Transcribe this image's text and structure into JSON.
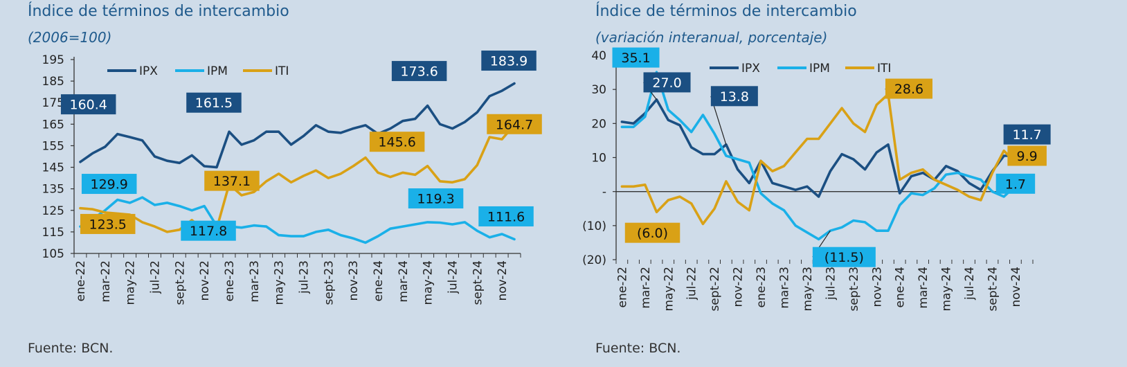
{
  "colors": {
    "IPX": "#1b4f82",
    "IPM": "#1ab0e8",
    "ITI": "#d9a116",
    "axis": "#333333"
  },
  "chart_data": [
    {
      "type": "line",
      "title": "Índice de términos de intercambio",
      "subtitle": "(2006=100)",
      "source": "Fuente: BCN.",
      "ylim": [
        105,
        195
      ],
      "yticks": [
        105,
        115,
        125,
        135,
        145,
        155,
        165,
        175,
        185,
        195
      ],
      "ytick_labels": [
        "105",
        "115",
        "125",
        "135",
        "145",
        "155",
        "165",
        "175",
        "185",
        "195"
      ],
      "x": [
        "ene-22",
        "feb-22",
        "mar-22",
        "abr-22",
        "may-22",
        "jun-22",
        "jul-22",
        "ago-22",
        "sept-22",
        "oct-22",
        "nov-22",
        "dic-22",
        "ene-23",
        "feb-23",
        "mar-23",
        "abr-23",
        "may-23",
        "jun-23",
        "jul-23",
        "ago-23",
        "sept-23",
        "oct-23",
        "nov-23",
        "dic-23",
        "ene-24",
        "feb-24",
        "mar-24",
        "abr-24",
        "may-24",
        "jun-24",
        "jul-24",
        "ago-24",
        "sept-24",
        "oct-24",
        "nov-24",
        "dic-24"
      ],
      "xtick_labels": [
        "ene-22",
        "mar-22",
        "may-22",
        "jul-22",
        "sept-22",
        "nov-22",
        "ene-23",
        "mar-23",
        "may-23",
        "jul-23",
        "sept-23",
        "nov-23",
        "ene-24",
        "mar-24",
        "may-24",
        "jul-24",
        "sept-24",
        "nov-24"
      ],
      "legend_position": "top-left",
      "series": [
        {
          "name": "IPX",
          "values": [
            147.5,
            151.5,
            154.5,
            160.4,
            159,
            157.5,
            150,
            148,
            147,
            150.5,
            145.5,
            145,
            161.5,
            155.5,
            157.5,
            161.5,
            161.5,
            155.5,
            159.5,
            164.5,
            161.5,
            161,
            163,
            164.5,
            160.5,
            163,
            166.5,
            167.5,
            173.6,
            165,
            163,
            166,
            170.5,
            178,
            180.5,
            183.9
          ]
        },
        {
          "name": "IPM",
          "values": [
            117.5,
            121,
            125,
            129.9,
            128.5,
            131,
            127.5,
            128.5,
            127,
            125,
            127,
            117.8,
            117.5,
            117,
            118,
            117.5,
            113.5,
            113,
            113,
            115,
            116,
            113.5,
            112,
            110,
            113,
            116.5,
            117.5,
            118.5,
            119.5,
            119.3,
            118.5,
            119.5,
            115.5,
            112.5,
            114,
            111.6
          ]
        },
        {
          "name": "ITI",
          "values": [
            126,
            125.5,
            124,
            123.5,
            123,
            119.5,
            117.5,
            115,
            116,
            120.5,
            115.5,
            116.5,
            137.1,
            132,
            133.5,
            138.5,
            142,
            138,
            141,
            143.5,
            140,
            142,
            145.5,
            149.5,
            142.5,
            140.5,
            142.5,
            141.5,
            145.6,
            138.5,
            138,
            139.5,
            146,
            159,
            158,
            164.7
          ]
        }
      ],
      "annotations": [
        {
          "series": "IPX",
          "text": "160.4"
        },
        {
          "series": "IPX",
          "text": "161.5"
        },
        {
          "series": "IPX",
          "text": "173.6"
        },
        {
          "series": "IPX",
          "text": "183.9"
        },
        {
          "series": "IPM",
          "text": "129.9"
        },
        {
          "series": "IPM",
          "text": "117.8"
        },
        {
          "series": "IPM",
          "text": "119.3"
        },
        {
          "series": "IPM",
          "text": "111.6"
        },
        {
          "series": "ITI",
          "text": "123.5"
        },
        {
          "series": "ITI",
          "text": "137.1"
        },
        {
          "series": "ITI",
          "text": "145.6"
        },
        {
          "series": "ITI",
          "text": "164.7"
        }
      ]
    },
    {
      "type": "line",
      "title": "Índice de términos de intercambio",
      "subtitle": "(variación interanual, porcentaje)",
      "source": "Fuente: BCN.",
      "ylim": [
        -20,
        40
      ],
      "yticks": [
        -20,
        -10,
        0,
        10,
        20,
        30,
        40
      ],
      "ytick_labels": [
        "(20)",
        "(10)",
        "-",
        "10",
        "20",
        "30",
        "40"
      ],
      "x": [
        "ene-22",
        "feb-22",
        "mar-22",
        "abr-22",
        "may-22",
        "jun-22",
        "jul-22",
        "ago-22",
        "sept-22",
        "oct-22",
        "nov-22",
        "dic-22",
        "ene-23",
        "feb-23",
        "mar-23",
        "abr-23",
        "may-23",
        "jun-23",
        "jul-23",
        "ago-23",
        "sept-23",
        "oct-23",
        "nov-23",
        "dic-23",
        "ene-24",
        "feb-24",
        "mar-24",
        "abr-24",
        "may-24",
        "jun-24",
        "jul-24",
        "ago-24",
        "sept-24",
        "oct-24",
        "nov-24",
        "dic-24"
      ],
      "xtick_labels": [
        "ene-22",
        "mar-22",
        "may-22",
        "jul-22",
        "sept-22",
        "nov-22",
        "ene-23",
        "mar-23",
        "may-23",
        "jul-23",
        "sept-23",
        "nov-23",
        "ene-24",
        "mar-24",
        "may-24",
        "jul-24",
        "sept-24",
        "nov-24"
      ],
      "legend_position": "top-center",
      "series": [
        {
          "name": "IPX",
          "values": [
            20.5,
            20,
            23,
            27,
            21,
            19.5,
            13,
            11,
            11,
            13.8,
            6.5,
            2.5,
            9,
            2.5,
            1.5,
            0.5,
            1.5,
            -1.5,
            6,
            11,
            9.5,
            6.5,
            11.5,
            13.8,
            -0.5,
            4.5,
            5.5,
            3.5,
            7.5,
            6,
            2.5,
            0.5,
            6,
            10.5,
            10.5,
            11.7
          ]
        },
        {
          "name": "IPM",
          "values": [
            19,
            19,
            22,
            35.1,
            24,
            21,
            17.5,
            22.5,
            17,
            10.5,
            9.5,
            8.5,
            -0.5,
            -3.5,
            -5.5,
            -10,
            -12,
            -14,
            -11.5,
            -10.5,
            -8.5,
            -9,
            -11.5,
            -11.5,
            -4,
            -0.5,
            -1,
            1,
            5,
            5.5,
            4.5,
            3.5,
            0,
            -1.5,
            1.7,
            1.7
          ]
        },
        {
          "name": "ITI",
          "values": [
            1.5,
            1.5,
            2,
            -6,
            -2.5,
            -1.5,
            -3.5,
            -9.5,
            -5,
            3,
            -3,
            -5.5,
            9,
            6,
            7.5,
            11.5,
            15.5,
            15.5,
            20,
            24.5,
            20,
            17.5,
            25.5,
            28.6,
            3.5,
            5.5,
            6.5,
            3.5,
            2,
            0.5,
            -1.5,
            -2.5,
            5.5,
            12,
            8.5,
            9.9
          ]
        }
      ],
      "annotations": [
        {
          "series": "IPX",
          "text": "27.0"
        },
        {
          "series": "IPX",
          "text": "13.8"
        },
        {
          "series": "IPX",
          "text": "11.7"
        },
        {
          "series": "IPM",
          "text": "35.1"
        },
        {
          "series": "IPM",
          "text": "(11.5)"
        },
        {
          "series": "IPM",
          "text": "1.7"
        },
        {
          "series": "ITI",
          "text": "(6.0)"
        },
        {
          "series": "ITI",
          "text": "28.6"
        },
        {
          "series": "ITI",
          "text": "9.9"
        }
      ]
    }
  ]
}
